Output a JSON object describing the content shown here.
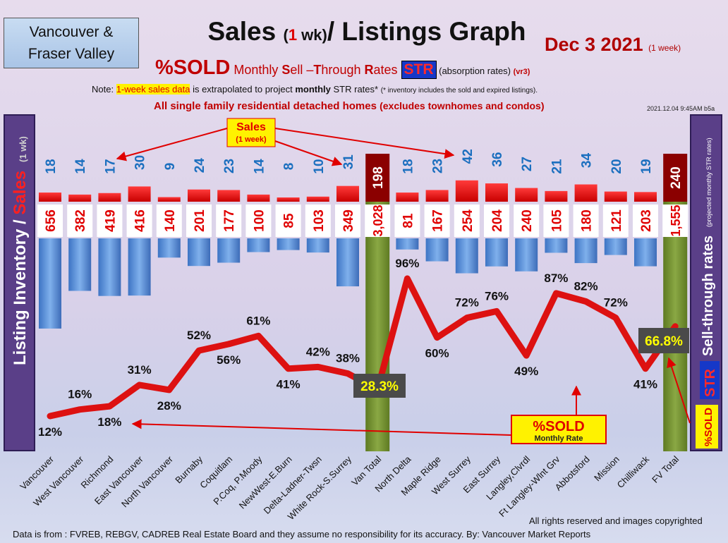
{
  "header": {
    "region_line1": "Vancouver &",
    "region_line2": "Fraser Valley",
    "title_part1": "Sales ",
    "title_paren_open": "(",
    "title_one": "1",
    "title_wk": " wk)",
    "title_part2": "/ Listings Graph",
    "date": "Dec  3  2021",
    "date_note": "(1 week)",
    "sold_label": "%SOLD",
    "monthly_pre": " Monthly ",
    "monthly_s": "S",
    "monthly_ell": "ell –",
    "monthly_t": "T",
    "monthly_hrough": "hrough ",
    "monthly_r": "R",
    "monthly_ates": "ates ",
    "str_badge": "STR",
    "absorption": " (absorption rates) ",
    "version": "(vr3)",
    "note_pre": "Note: ",
    "note_highlight": "1-week sales data",
    "note_mid1": " is extrapolated to project ",
    "note_monthly": "monthly",
    "note_mid2": " STR rates* ",
    "note_tiny": "(* inventory includes the sold and expired listings).",
    "family_main": "All single family residential detached homes ",
    "family_paren": "(excludes townhomes and condos)",
    "stamp": "2021.12.04 9:45AM b5a"
  },
  "side_labels": {
    "listing_inventory": "Listing Inventory",
    "slash": " / ",
    "sales": "Sales",
    "one_wk": "(1 wk)",
    "sell_through": "Sell-through rates",
    "projected": "(projected monthly STR rates)",
    "str": "STR",
    "sold": "%SOLD"
  },
  "callouts": {
    "sales_title": "Sales",
    "sales_sub": "(1 week)",
    "sold_title": "%SOLD",
    "sold_sub": "Monthly Rate",
    "van_total_pct": "28.3%",
    "fv_total_pct": "66.8%"
  },
  "footer": {
    "copyright": "All rights reserved and  images copyrighted",
    "source": "Data is from : FVREB, REBGV, CADREB Real Estate Board and they assume no responsibility for its accuracy. By: Vancouver Market Reports"
  },
  "colors": {
    "sales_bar": "#e60000",
    "total_bar": "#8b0000",
    "inventory_bar": "#4f86cf",
    "total_column": "#6e8a2c",
    "line": "#dd1111",
    "sales_text": "#1b6fbf",
    "inventory_text": "#e00000"
  },
  "chart_data": {
    "type": "bar",
    "categories": [
      "Vancouver",
      "West Vancouver",
      "Richmond",
      "East Vancouver",
      "North Vancouver",
      "Burnaby",
      "Coquitlam",
      "P.Coq, P.Moody",
      "NewWest-E.Burn",
      "Delta-Ladner-Twsn",
      "White Rock-S.Surrey",
      "Van Total",
      "North Delta",
      "Maple Ridge",
      "West Surrey",
      "East Surrey",
      "Langley,Clvrdl",
      "Ft Langley-Wlnt Grv",
      "Abbotsford",
      "Mission",
      "Chilliwack",
      "FV Total"
    ],
    "series": [
      {
        "name": "Sales",
        "values": [
          18,
          14,
          17,
          30,
          9,
          24,
          23,
          14,
          8,
          10,
          31,
          198,
          18,
          23,
          42,
          36,
          27,
          21,
          34,
          20,
          19,
          240
        ]
      },
      {
        "name": "Listing Inventory",
        "values": [
          656,
          382,
          419,
          416,
          140,
          201,
          177,
          100,
          85,
          103,
          349,
          3028,
          81,
          167,
          254,
          204,
          240,
          105,
          180,
          121,
          203,
          1555
        ]
      },
      {
        "name": "%SOLD",
        "values": [
          12,
          16,
          18,
          31,
          28,
          52,
          56,
          61,
          41,
          42,
          38,
          28.3,
          96,
          60,
          72,
          76,
          49,
          87,
          82,
          72,
          41,
          66.8
        ]
      }
    ],
    "inventory_labels": [
      "656",
      "382",
      "419",
      "416",
      "140",
      "201",
      "177",
      "100",
      "85",
      "103",
      "349",
      "3,028",
      "81",
      "167",
      "254",
      "204",
      "240",
      "105",
      "180",
      "121",
      "203",
      "1,555"
    ],
    "pct_labels": [
      "12%",
      "16%",
      "18%",
      "31%",
      "28%",
      "52%",
      "56%",
      "61%",
      "41%",
      "42%",
      "38%",
      "",
      "96%",
      "60%",
      "72%",
      "76%",
      "49%",
      "87%",
      "82%",
      "72%",
      "41%",
      ""
    ],
    "total_indices": [
      11,
      21
    ],
    "xlabel": "",
    "ylabel": ""
  }
}
